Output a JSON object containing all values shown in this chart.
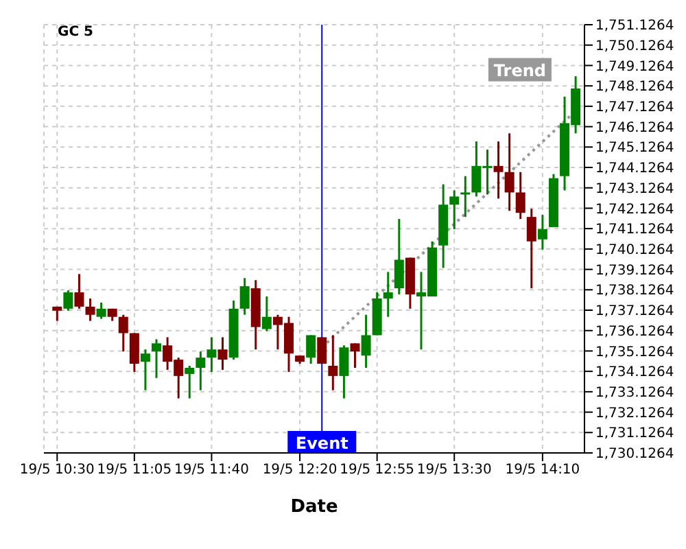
{
  "chart_data": {
    "type": "candlestick",
    "title": "GC 5",
    "xlabel": "Date",
    "x": [
      "--05-19T10:30",
      "--05-19T10:35",
      "--05-19T10:40",
      "--05-19T10:45",
      "--05-19T10:50",
      "--05-19T10:55",
      "--05-19T11:00",
      "--05-19T11:05",
      "--05-19T11:10",
      "--05-19T11:15",
      "--05-19T11:20",
      "--05-19T11:25",
      "--05-19T11:30",
      "--05-19T11:35",
      "--05-19T11:40",
      "--05-19T11:45",
      "--05-19T11:50",
      "--05-19T11:55",
      "--05-19T12:00",
      "--05-19T12:05",
      "--05-19T12:10",
      "--05-19T12:15",
      "--05-19T12:20",
      "--05-19T12:25",
      "--05-19T12:30",
      "--05-19T12:35",
      "--05-19T12:40",
      "--05-19T12:45",
      "--05-19T12:50",
      "--05-19T12:55",
      "--05-19T13:00",
      "--05-19T13:05",
      "--05-19T13:10",
      "--05-19T13:15",
      "--05-19T13:20",
      "--05-19T13:25",
      "--05-19T13:30",
      "--05-19T13:35",
      "--05-19T13:40",
      "--05-19T13:45",
      "--05-19T13:50",
      "--05-19T13:55",
      "--05-19T14:00",
      "--05-19T14:05",
      "--05-19T14:10",
      "--05-19T14:15",
      "--05-19T14:20",
      "--05-19T14:25"
    ],
    "ohlc": [
      [
        1737.3,
        1737.3,
        1736.6,
        1737.1
      ],
      [
        1737.2,
        1738.1,
        1737.1,
        1738.0
      ],
      [
        1738.0,
        1738.9,
        1737.2,
        1737.3
      ],
      [
        1737.3,
        1737.7,
        1736.6,
        1736.9
      ],
      [
        1736.8,
        1737.5,
        1736.7,
        1737.2
      ],
      [
        1737.2,
        1737.2,
        1736.6,
        1736.8
      ],
      [
        1736.8,
        1736.9,
        1735.1,
        1736.0
      ],
      [
        1736.0,
        1736.0,
        1734.1,
        1734.5
      ],
      [
        1734.6,
        1735.2,
        1733.2,
        1735.0
      ],
      [
        1735.1,
        1735.7,
        1733.8,
        1735.5
      ],
      [
        1735.4,
        1735.8,
        1734.2,
        1734.6
      ],
      [
        1734.7,
        1734.8,
        1732.8,
        1733.9
      ],
      [
        1734.0,
        1734.4,
        1732.8,
        1734.3
      ],
      [
        1734.3,
        1735.1,
        1733.2,
        1734.8
      ],
      [
        1734.8,
        1735.8,
        1734.1,
        1735.2
      ],
      [
        1735.2,
        1735.8,
        1734.2,
        1734.7
      ],
      [
        1734.8,
        1737.6,
        1734.7,
        1737.2
      ],
      [
        1737.2,
        1738.7,
        1736.9,
        1738.3
      ],
      [
        1738.2,
        1738.6,
        1735.2,
        1736.3
      ],
      [
        1736.2,
        1737.8,
        1736.1,
        1736.8
      ],
      [
        1736.8,
        1736.9,
        1735.2,
        1736.4
      ],
      [
        1736.5,
        1736.8,
        1734.1,
        1735.0
      ],
      [
        1734.9,
        1734.9,
        1734.5,
        1734.6
      ],
      [
        1734.8,
        1735.9,
        1734.5,
        1735.9
      ],
      [
        1735.8,
        1735.8,
        1734.5,
        1734.5
      ],
      [
        1734.4,
        1735.9,
        1733.2,
        1733.9
      ],
      [
        1733.9,
        1735.4,
        1732.8,
        1735.3
      ],
      [
        1735.5,
        1735.5,
        1734.3,
        1735.1
      ],
      [
        1734.9,
        1736.9,
        1734.3,
        1735.9
      ],
      [
        1735.9,
        1738.0,
        1735.9,
        1737.7
      ],
      [
        1737.7,
        1739.0,
        1736.8,
        1738.0
      ],
      [
        1738.2,
        1741.6,
        1737.9,
        1739.6
      ],
      [
        1739.7,
        1739.7,
        1737.2,
        1737.9
      ],
      [
        1737.8,
        1739.0,
        1735.2,
        1738.0
      ],
      [
        1737.8,
        1740.5,
        1737.8,
        1740.2
      ],
      [
        1740.3,
        1743.3,
        1739.2,
        1742.3
      ],
      [
        1742.3,
        1743.0,
        1741.1,
        1742.7
      ],
      [
        1742.8,
        1743.7,
        1741.7,
        1742.9
      ],
      [
        1742.9,
        1745.4,
        1742.7,
        1744.2
      ],
      [
        1744.1,
        1745.0,
        1742.8,
        1744.2
      ],
      [
        1744.2,
        1745.4,
        1742.6,
        1743.9
      ],
      [
        1743.9,
        1745.8,
        1742.0,
        1742.9
      ],
      [
        1742.9,
        1743.9,
        1741.6,
        1741.9
      ],
      [
        1741.7,
        1742.1,
        1738.2,
        1740.5
      ],
      [
        1740.6,
        1741.8,
        1740.1,
        1741.1
      ],
      [
        1741.2,
        1743.8,
        1741.2,
        1743.6
      ],
      [
        1743.7,
        1747.6,
        1743.0,
        1746.3
      ],
      [
        1746.2,
        1748.6,
        1745.8,
        1748.0
      ]
    ],
    "colors": [
      "#800000",
      "#008000",
      "#800000",
      "#800000",
      "#008000",
      "#800000",
      "#800000",
      "#800000",
      "#008000",
      "#008000",
      "#800000",
      "#800000",
      "#008000",
      "#008000",
      "#008000",
      "#800000",
      "#008000",
      "#008000",
      "#800000",
      "#008000",
      "#800000",
      "#800000",
      "#800000",
      "#008000",
      "#800000",
      "#800000",
      "#008000",
      "#800000",
      "#008000",
      "#008000",
      "#008000",
      "#008000",
      "#800000",
      "#008000",
      "#008000",
      "#008000",
      "#008000",
      "#008000",
      "#008000",
      "#008000",
      "#800000",
      "#800000",
      "#800000",
      "#800000",
      "#008000",
      "#008000",
      "#008000",
      "#008000"
    ],
    "series": [
      {
        "type": "line",
        "name": "Trend",
        "color": "#999999",
        "line_style": "dotted",
        "x": [
          "--05-19T12:30",
          "--05-19T14:24"
        ],
        "values": [
          1735.3,
          1746.8
        ]
      }
    ],
    "ref_lines": [
      {
        "axis": "x",
        "value": "--05-19T12:30",
        "label": "Event",
        "color": "#0000ff"
      }
    ],
    "xlim": [
      "--05-19T10:24",
      "--05-19T14:29"
    ],
    "xticks": [
      {
        "value": "--05-19T10:30",
        "label": "19/5 10:30"
      },
      {
        "value": "--05-19T11:05",
        "label": "19/5 11:05"
      },
      {
        "value": "--05-19T11:40",
        "label": "19/5 11:40"
      },
      {
        "value": "--05-19T12:20",
        "label": "19/5 12:20"
      },
      {
        "value": "--05-19T12:55",
        "label": "19/5 12:55"
      },
      {
        "value": "--05-19T13:30",
        "label": "19/5 13:30"
      },
      {
        "value": "--05-19T14:10",
        "label": "19/5 14:10"
      }
    ],
    "ylim": [
      1730.1264,
      1751.1264
    ],
    "yticks": [
      {
        "value": 1730.1264,
        "label": "1,730.1264"
      },
      {
        "value": 1731.1264,
        "label": "1,731.1264"
      },
      {
        "value": 1732.1264,
        "label": "1,732.1264"
      },
      {
        "value": 1733.1264,
        "label": "1,733.1264"
      },
      {
        "value": 1734.1264,
        "label": "1,734.1264"
      },
      {
        "value": 1735.1264,
        "label": "1,735.1264"
      },
      {
        "value": 1736.1264,
        "label": "1,736.1264"
      },
      {
        "value": 1737.1264,
        "label": "1,737.1264"
      },
      {
        "value": 1738.1264,
        "label": "1,738.1264"
      },
      {
        "value": 1739.1264,
        "label": "1,739.1264"
      },
      {
        "value": 1740.1264,
        "label": "1,740.1264"
      },
      {
        "value": 1741.1264,
        "label": "1,741.1264"
      },
      {
        "value": 1742.1264,
        "label": "1,742.1264"
      },
      {
        "value": 1743.1264,
        "label": "1,743.1264"
      },
      {
        "value": 1744.1264,
        "label": "1,744.1264"
      },
      {
        "value": 1745.1264,
        "label": "1,745.1264"
      },
      {
        "value": 1746.1264,
        "label": "1,746.1264"
      },
      {
        "value": 1747.1264,
        "label": "1,747.1264"
      },
      {
        "value": 1748.1264,
        "label": "1,748.1264"
      },
      {
        "value": 1749.1264,
        "label": "1,749.1264"
      },
      {
        "value": 1750.1264,
        "label": "1,750.1264"
      },
      {
        "value": 1751.1264,
        "label": "1,751.1264"
      }
    ],
    "grid": true
  }
}
